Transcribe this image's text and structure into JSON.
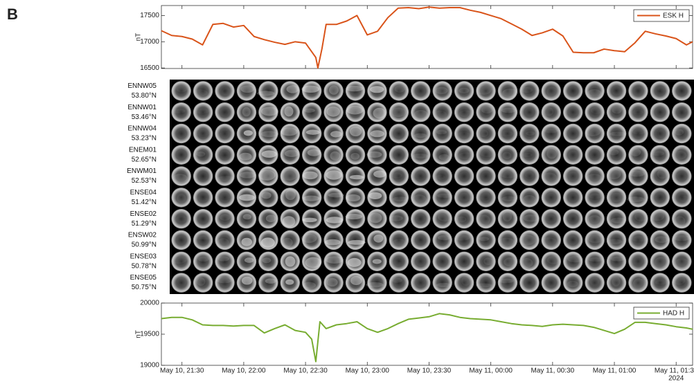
{
  "panel_label": "B",
  "camera_grid": {
    "columns": 24,
    "rows": [
      {
        "station": "ENNW05",
        "latitude": "53.80°N"
      },
      {
        "station": "ENNW01",
        "latitude": "53.46°N"
      },
      {
        "station": "ENNW04",
        "latitude": "53.23°N"
      },
      {
        "station": "ENEM01",
        "latitude": "52.65°N"
      },
      {
        "station": "ENWM01",
        "latitude": "52.53°N"
      },
      {
        "station": "ENSE04",
        "latitude": "51.42°N"
      },
      {
        "station": "ENSE02",
        "latitude": "51.29°N"
      },
      {
        "station": "ENSW02",
        "latitude": "50.99°N"
      },
      {
        "station": "ENSE03",
        "latitude": "50.78°N"
      },
      {
        "station": "ENSE05",
        "latitude": "50.75°N"
      }
    ]
  },
  "chart_data": [
    {
      "type": "line",
      "ylabel": "nT",
      "legend": "upper right",
      "x": [
        "2024-05-10T21:20",
        "2024-05-10T21:25",
        "2024-05-10T21:30",
        "2024-05-10T21:35",
        "2024-05-10T21:40",
        "2024-05-10T21:45",
        "2024-05-10T21:50",
        "2024-05-10T21:55",
        "2024-05-10T22:00",
        "2024-05-10T22:05",
        "2024-05-10T22:10",
        "2024-05-10T22:15",
        "2024-05-10T22:20",
        "2024-05-10T22:25",
        "2024-05-10T22:30",
        "2024-05-10T22:35",
        "2024-05-10T22:36",
        "2024-05-10T22:38",
        "2024-05-10T22:40",
        "2024-05-10T22:45",
        "2024-05-10T22:50",
        "2024-05-10T22:55",
        "2024-05-10T23:00",
        "2024-05-10T23:05",
        "2024-05-10T23:10",
        "2024-05-10T23:15",
        "2024-05-10T23:20",
        "2024-05-10T23:25",
        "2024-05-10T23:30",
        "2024-05-10T23:35",
        "2024-05-10T23:40",
        "2024-05-10T23:45",
        "2024-05-10T23:50",
        "2024-05-10T23:55",
        "2024-05-11T00:00",
        "2024-05-11T00:05",
        "2024-05-11T00:10",
        "2024-05-11T00:15",
        "2024-05-11T00:20",
        "2024-05-11T00:25",
        "2024-05-11T00:30",
        "2024-05-11T00:35",
        "2024-05-11T00:40",
        "2024-05-11T00:45",
        "2024-05-11T00:50",
        "2024-05-11T00:55",
        "2024-05-11T01:00",
        "2024-05-11T01:05",
        "2024-05-11T01:10",
        "2024-05-11T01:15",
        "2024-05-11T01:20",
        "2024-05-11T01:25",
        "2024-05-11T01:30",
        "2024-05-11T01:35",
        "2024-05-11T01:38"
      ],
      "series": [
        {
          "name": "ESK H",
          "color": "#d95319",
          "values": [
            17210,
            17120,
            17100,
            17050,
            16940,
            17330,
            17350,
            17280,
            17310,
            17100,
            17040,
            16990,
            16950,
            17000,
            16975,
            16700,
            16500,
            16870,
            17330,
            17330,
            17395,
            17500,
            17130,
            17200,
            17460,
            17640,
            17650,
            17630,
            17660,
            17640,
            17650,
            17650,
            17600,
            17560,
            17500,
            17440,
            17340,
            17240,
            17120,
            17170,
            17240,
            17110,
            16800,
            16790,
            16790,
            16860,
            16830,
            16810,
            16980,
            17200,
            17150,
            17110,
            17060,
            16940,
            17000
          ]
        }
      ],
      "xlim": [
        "2024-05-10T21:20",
        "2024-05-11T01:38"
      ],
      "xticks": [
        "2024-05-10T21:30",
        "2024-05-10T22:00",
        "2024-05-10T22:30",
        "2024-05-10T23:00",
        "2024-05-10T23:30",
        "2024-05-11T00:00",
        "2024-05-11T00:30",
        "2024-05-11T01:00",
        "2024-05-11T01:30"
      ],
      "ylim": [
        16490,
        17690
      ],
      "yticks": [
        16500,
        17000,
        17500
      ]
    },
    {
      "type": "line",
      "ylabel": "nT",
      "legend": "upper right",
      "x_secondary_label": "2024",
      "x": [
        "2024-05-10T21:20",
        "2024-05-10T21:25",
        "2024-05-10T21:30",
        "2024-05-10T21:35",
        "2024-05-10T21:40",
        "2024-05-10T21:45",
        "2024-05-10T21:50",
        "2024-05-10T21:55",
        "2024-05-10T22:00",
        "2024-05-10T22:05",
        "2024-05-10T22:10",
        "2024-05-10T22:15",
        "2024-05-10T22:20",
        "2024-05-10T22:25",
        "2024-05-10T22:30",
        "2024-05-10T22:33",
        "2024-05-10T22:35",
        "2024-05-10T22:37",
        "2024-05-10T22:40",
        "2024-05-10T22:45",
        "2024-05-10T22:50",
        "2024-05-10T22:55",
        "2024-05-10T23:00",
        "2024-05-10T23:05",
        "2024-05-10T23:10",
        "2024-05-10T23:15",
        "2024-05-10T23:20",
        "2024-05-10T23:25",
        "2024-05-10T23:30",
        "2024-05-10T23:35",
        "2024-05-10T23:40",
        "2024-05-10T23:45",
        "2024-05-10T23:50",
        "2024-05-10T23:55",
        "2024-05-11T00:00",
        "2024-05-11T00:05",
        "2024-05-11T00:10",
        "2024-05-11T00:15",
        "2024-05-11T00:20",
        "2024-05-11T00:25",
        "2024-05-11T00:30",
        "2024-05-11T00:35",
        "2024-05-11T00:40",
        "2024-05-11T00:45",
        "2024-05-11T00:50",
        "2024-05-11T00:55",
        "2024-05-11T01:00",
        "2024-05-11T01:05",
        "2024-05-11T01:10",
        "2024-05-11T01:15",
        "2024-05-11T01:20",
        "2024-05-11T01:25",
        "2024-05-11T01:30",
        "2024-05-11T01:35",
        "2024-05-11T01:38"
      ],
      "series": [
        {
          "name": "HAD H",
          "color": "#77ac30",
          "values": [
            19750,
            19770,
            19770,
            19730,
            19650,
            19640,
            19640,
            19630,
            19640,
            19640,
            19520,
            19590,
            19650,
            19560,
            19530,
            19420,
            19060,
            19700,
            19590,
            19650,
            19670,
            19700,
            19590,
            19530,
            19590,
            19670,
            19740,
            19760,
            19780,
            19830,
            19810,
            19770,
            19750,
            19740,
            19730,
            19700,
            19670,
            19650,
            19640,
            19625,
            19650,
            19660,
            19650,
            19640,
            19610,
            19560,
            19510,
            19580,
            19690,
            19690,
            19670,
            19650,
            19620,
            19600,
            19580
          ]
        }
      ],
      "xlim": [
        "2024-05-10T21:20",
        "2024-05-11T01:38"
      ],
      "xticks": [
        {
          "value": "2024-05-10T21:30",
          "label": "May 10, 21:30"
        },
        {
          "value": "2024-05-10T22:00",
          "label": "May 10, 22:00"
        },
        {
          "value": "2024-05-10T22:30",
          "label": "May 10, 22:30"
        },
        {
          "value": "2024-05-10T23:00",
          "label": "May 10, 23:00"
        },
        {
          "value": "2024-05-10T23:30",
          "label": "May 10, 23:30"
        },
        {
          "value": "2024-05-11T00:00",
          "label": "May 11, 00:00"
        },
        {
          "value": "2024-05-11T00:30",
          "label": "May 11, 00:30"
        },
        {
          "value": "2024-05-11T01:00",
          "label": "May 11, 01:00"
        },
        {
          "value": "2024-05-11T01:30",
          "label": "May 11, 01:30"
        }
      ],
      "ylim": [
        19000,
        20000
      ],
      "yticks": [
        19000,
        19500,
        20000
      ]
    }
  ]
}
